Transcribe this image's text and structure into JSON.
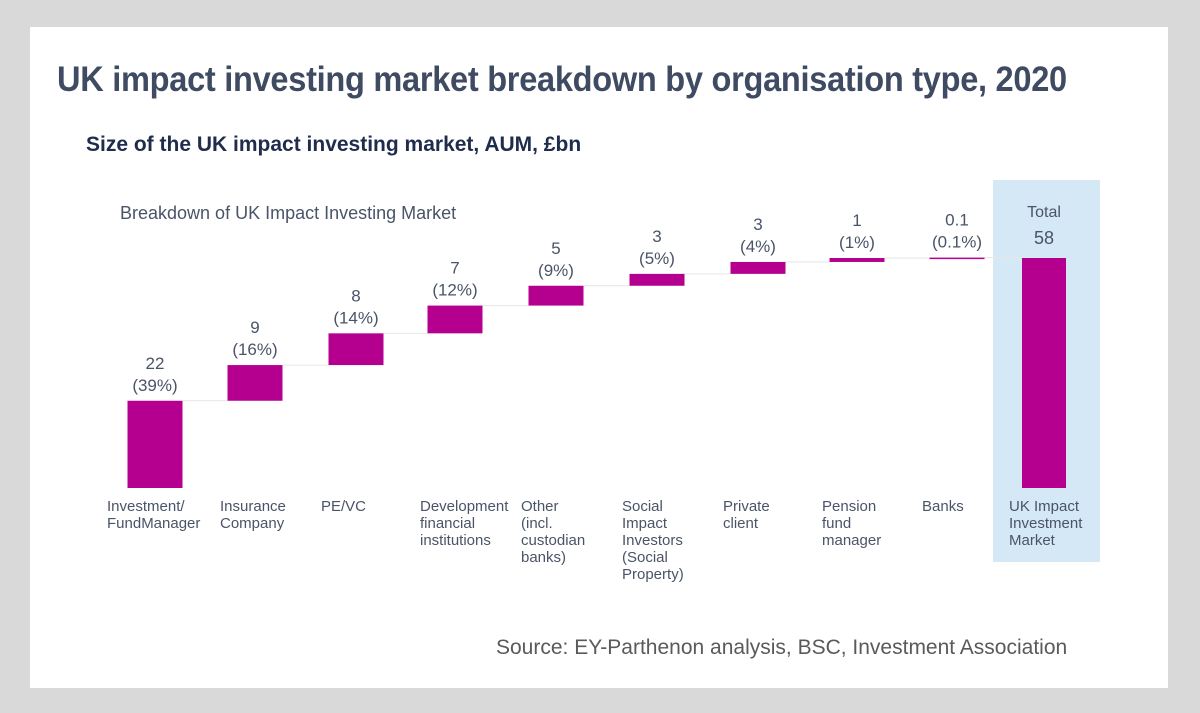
{
  "title": "UK impact investing market breakdown by organisation type, 2020",
  "subtitle": "Size of the UK impact investing market, AUM, £bn",
  "source": "Source: EY-Parthenon analysis, BSC, Investment  Association",
  "chart_data": {
    "type": "bar",
    "subtype": "waterfall",
    "title": "Breakdown of UK Impact Investing Market",
    "categories": [
      [
        "Investment/",
        "FundManager"
      ],
      [
        "Insurance",
        "Company"
      ],
      [
        "PE/VC"
      ],
      [
        "Development",
        "financial",
        "institutions"
      ],
      [
        "Other",
        "(incl.",
        "custodian",
        "banks)"
      ],
      [
        "Social",
        "Impact",
        "Investors",
        "(Social",
        "Property)"
      ],
      [
        "Private",
        "client"
      ],
      [
        "Pension",
        "fund",
        "manager"
      ],
      [
        "Banks"
      ],
      [
        "UK Impact",
        "Investment",
        "Market"
      ]
    ],
    "values": [
      22,
      9,
      8,
      7,
      5,
      3,
      3,
      1,
      0.1,
      58
    ],
    "value_labels": [
      "22",
      "9",
      "8",
      "7",
      "5",
      "3",
      "3",
      "1",
      "0.1",
      "58"
    ],
    "percent_labels": [
      "(39%)",
      "(16%)",
      "(14%)",
      "(12%)",
      "(9%)",
      "(5%)",
      "(4%)",
      "(1%)",
      "(0.1%)",
      ""
    ],
    "total_label": "Total",
    "total_index": 9,
    "colors": {
      "bar": "#b5008f",
      "highlight": "#d5e8f5",
      "connector": "#e6e6e6"
    },
    "grid": false,
    "legend": "none"
  }
}
